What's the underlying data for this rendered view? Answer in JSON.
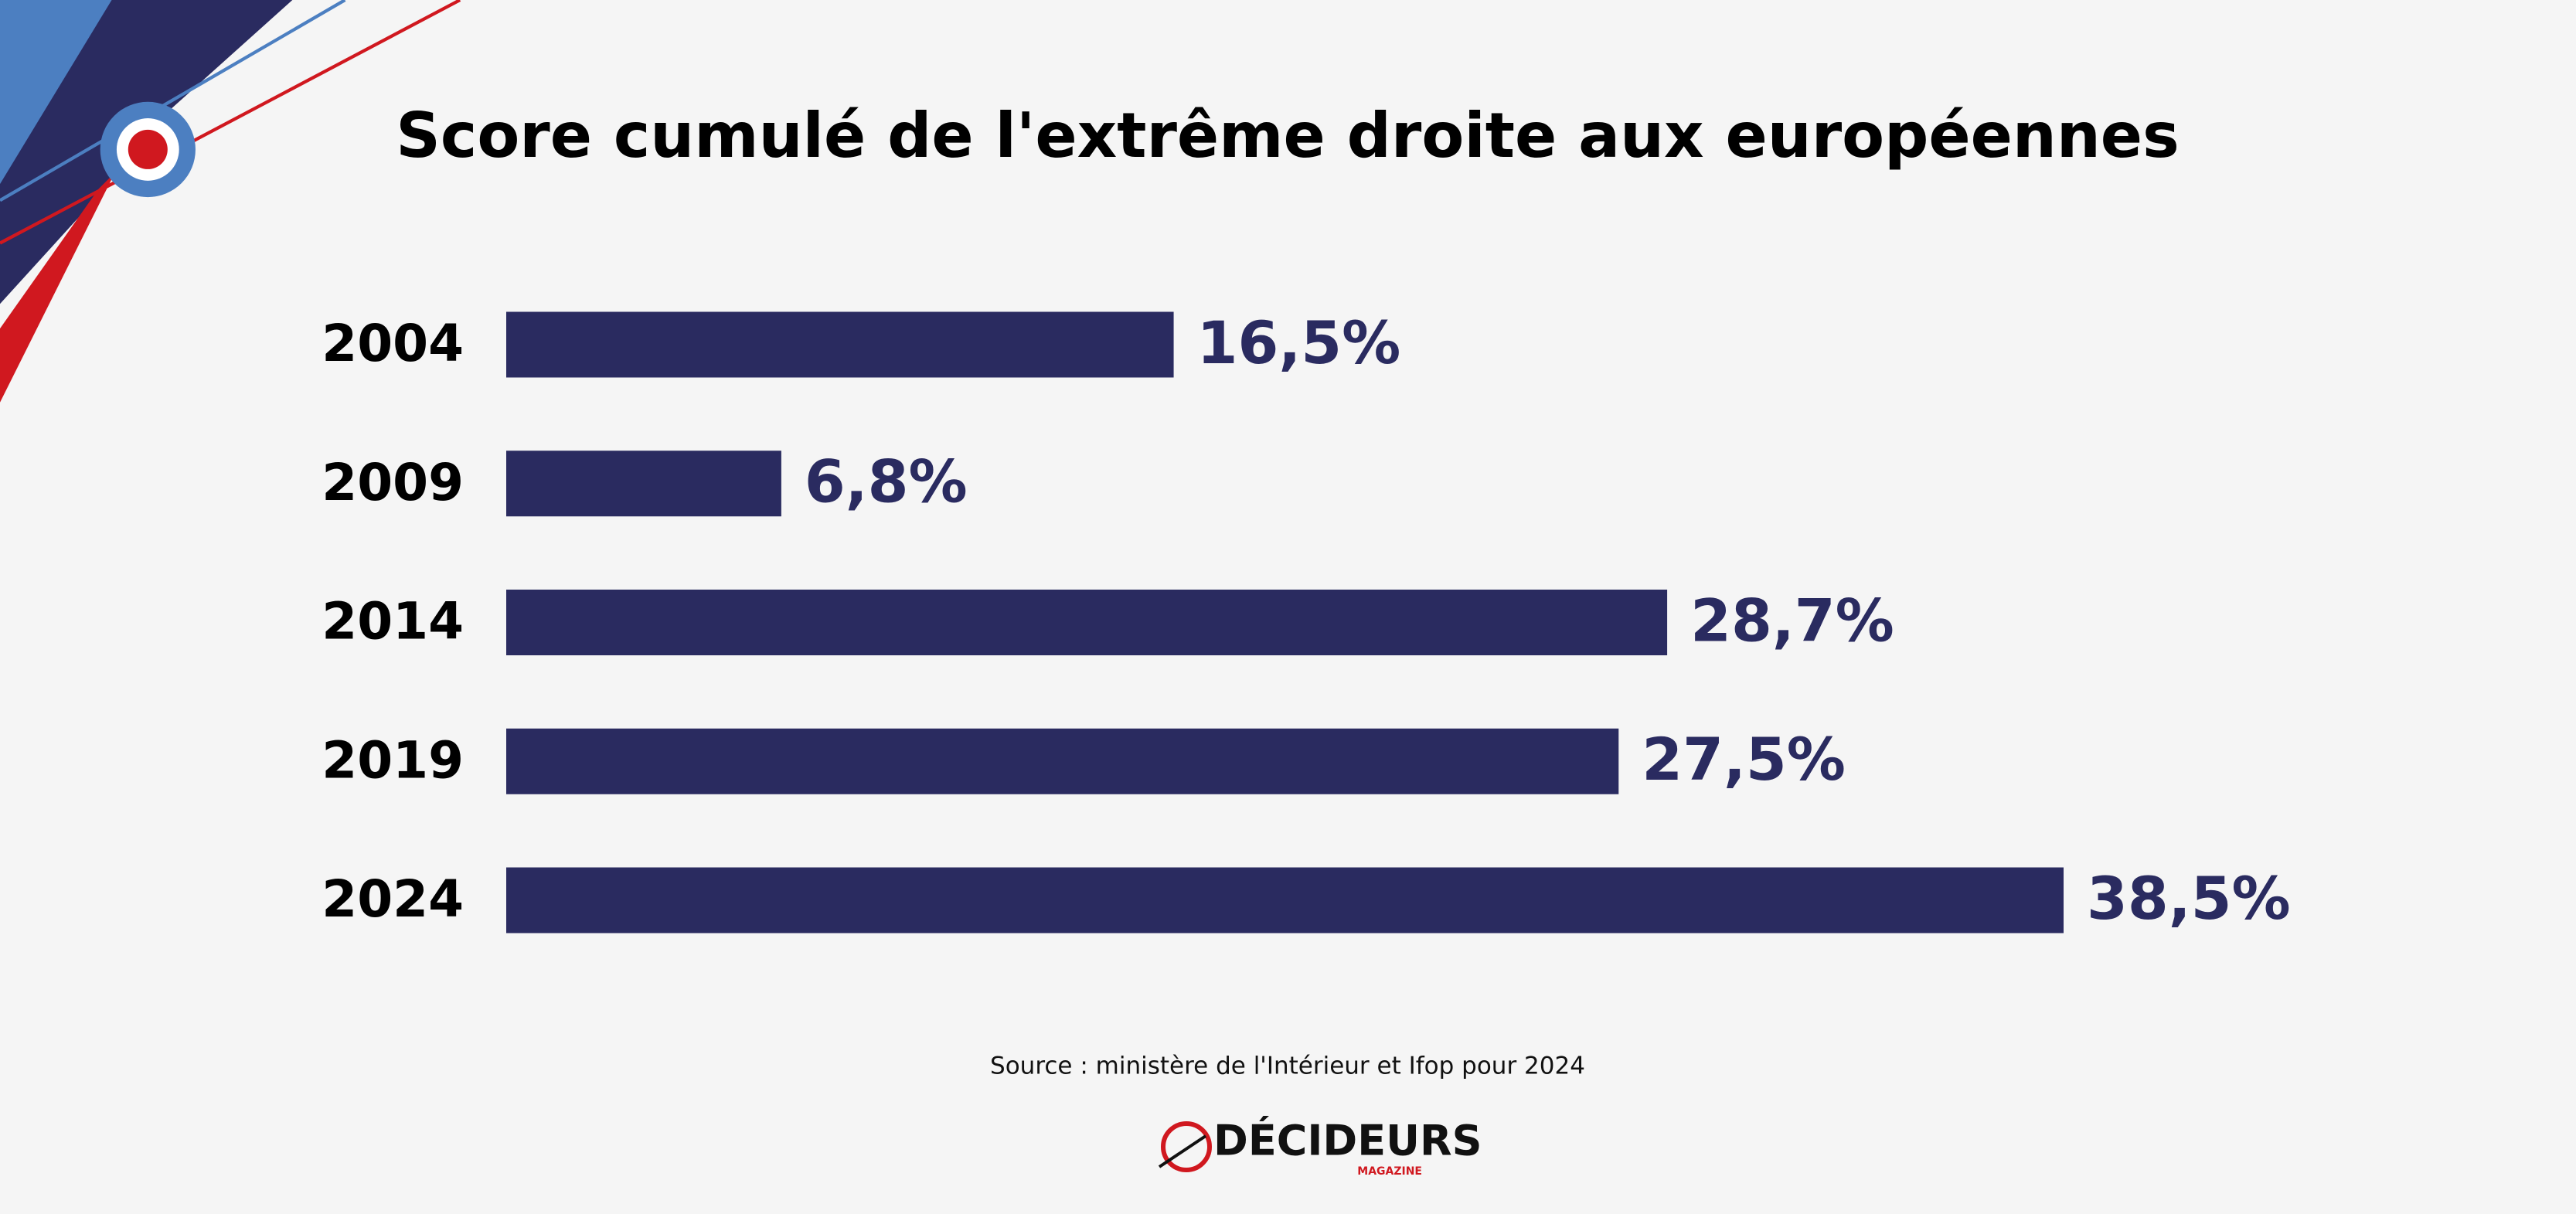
{
  "chart_data": {
    "type": "bar",
    "title": "Score cumulé de l'extrême droite aux européennes",
    "categories": [
      "2004",
      "2009",
      "2014",
      "2019",
      "2024"
    ],
    "values": [
      16.5,
      6.8,
      28.7,
      27.5,
      38.5
    ],
    "value_labels": [
      "16,5%",
      "6,8%",
      "28,7%",
      "27,5%",
      "38,5%"
    ],
    "color": "#2a2b60",
    "source": "Source : ministère de l'Intérieur et Ifop pour 2024"
  },
  "brand": {
    "name": "DÉCIDEURS",
    "sub": "MAGAZINE"
  }
}
